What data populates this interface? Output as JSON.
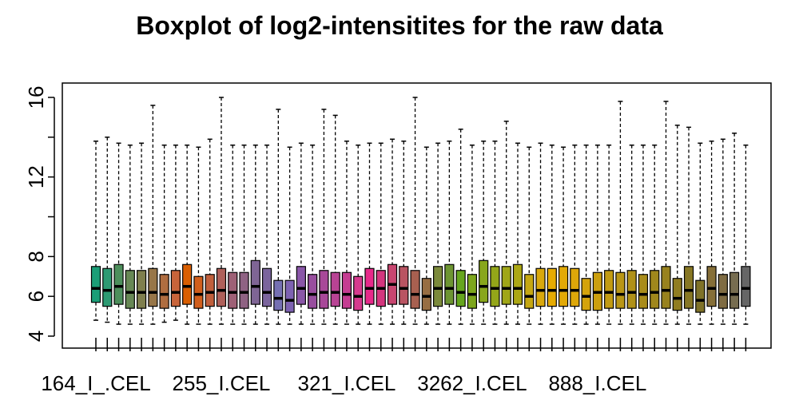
{
  "chart_data": {
    "type": "boxplot",
    "title": "Boxplot of log2-intensitites for the raw data",
    "xlabel": "",
    "ylabel": "",
    "ylim": [
      4,
      16
    ],
    "yticks": [
      4,
      6,
      8,
      12,
      16
    ],
    "xticklabels": [
      {
        "index": 1,
        "label": "164_I_.CEL"
      },
      {
        "index": 12,
        "label": "255_I.CEL"
      },
      {
        "index": 23,
        "label": "321_I.CEL"
      },
      {
        "index": 34,
        "label": "3262_I.CEL"
      },
      {
        "index": 45,
        "label": "888_I.CEL"
      }
    ],
    "boxes": [
      {
        "color": "#1B9E77",
        "whislo": 4.8,
        "q1": 5.7,
        "med": 6.4,
        "q3": 7.5,
        "whishi": 13.8
      },
      {
        "color": "#2E9A73",
        "whislo": 4.7,
        "q1": 5.5,
        "med": 6.3,
        "q3": 7.4,
        "whishi": 14.0
      },
      {
        "color": "#4D8F5C",
        "whislo": 4.6,
        "q1": 5.6,
        "med": 6.5,
        "q3": 7.6,
        "whishi": 13.7
      },
      {
        "color": "#678855",
        "whislo": 4.6,
        "q1": 5.4,
        "med": 6.2,
        "q3": 7.3,
        "whishi": 13.6
      },
      {
        "color": "#7F7F4E",
        "whislo": 4.6,
        "q1": 5.4,
        "med": 6.2,
        "q3": 7.3,
        "whishi": 13.7
      },
      {
        "color": "#977648",
        "whislo": 4.6,
        "q1": 5.5,
        "med": 6.2,
        "q3": 7.4,
        "whishi": 15.6
      },
      {
        "color": "#B06D40",
        "whislo": 4.7,
        "q1": 5.4,
        "med": 6.1,
        "q3": 7.1,
        "whishi": 13.6
      },
      {
        "color": "#C8643A",
        "whislo": 4.8,
        "q1": 5.5,
        "med": 6.2,
        "q3": 7.3,
        "whishi": 13.6
      },
      {
        "color": "#D95F02",
        "whislo": 4.6,
        "q1": 5.6,
        "med": 6.5,
        "q3": 7.6,
        "whishi": 13.6
      },
      {
        "color": "#D15E1C",
        "whislo": 4.6,
        "q1": 5.4,
        "med": 6.1,
        "q3": 7.0,
        "whishi": 13.5
      },
      {
        "color": "#C05F3C",
        "whislo": 4.6,
        "q1": 5.5,
        "med": 6.2,
        "q3": 7.1,
        "whishi": 13.9
      },
      {
        "color": "#AF605A",
        "whislo": 4.6,
        "q1": 5.5,
        "med": 6.3,
        "q3": 7.4,
        "whishi": 16.0
      },
      {
        "color": "#9E6176",
        "whislo": 4.6,
        "q1": 5.4,
        "med": 6.2,
        "q3": 7.2,
        "whishi": 13.6
      },
      {
        "color": "#8F6283",
        "whislo": 4.6,
        "q1": 5.4,
        "med": 6.2,
        "q3": 7.2,
        "whishi": 13.6
      },
      {
        "color": "#7F6595",
        "whislo": 4.6,
        "q1": 5.6,
        "med": 6.5,
        "q3": 7.8,
        "whishi": 13.6
      },
      {
        "color": "#7B659D",
        "whislo": 4.6,
        "q1": 5.5,
        "med": 6.2,
        "q3": 7.4,
        "whishi": 13.6
      },
      {
        "color": "#7570B3",
        "whislo": 4.6,
        "q1": 5.3,
        "med": 5.9,
        "q3": 6.8,
        "whishi": 15.4
      },
      {
        "color": "#7D62B2",
        "whislo": 4.6,
        "q1": 5.2,
        "med": 5.8,
        "q3": 6.8,
        "whishi": 13.5
      },
      {
        "color": "#8A57A8",
        "whislo": 4.6,
        "q1": 5.6,
        "med": 6.4,
        "q3": 7.5,
        "whishi": 13.7
      },
      {
        "color": "#984E9E",
        "whislo": 4.6,
        "q1": 5.4,
        "med": 6.1,
        "q3": 7.1,
        "whishi": 13.6
      },
      {
        "color": "#A84899",
        "whislo": 4.6,
        "q1": 5.4,
        "med": 6.2,
        "q3": 7.3,
        "whishi": 15.4
      },
      {
        "color": "#B84394",
        "whislo": 4.6,
        "q1": 5.5,
        "med": 6.2,
        "q3": 7.2,
        "whishi": 15.1
      },
      {
        "color": "#C53D92",
        "whislo": 4.6,
        "q1": 5.4,
        "med": 6.1,
        "q3": 7.2,
        "whishi": 13.8
      },
      {
        "color": "#D63A8E",
        "whislo": 4.6,
        "q1": 5.3,
        "med": 6.0,
        "q3": 7.0,
        "whishi": 13.6
      },
      {
        "color": "#E7298A",
        "whislo": 4.6,
        "q1": 5.6,
        "med": 6.4,
        "q3": 7.4,
        "whishi": 13.7
      },
      {
        "color": "#D4367E",
        "whislo": 4.6,
        "q1": 5.5,
        "med": 6.4,
        "q3": 7.3,
        "whishi": 13.7
      },
      {
        "color": "#C84670",
        "whislo": 4.6,
        "q1": 5.6,
        "med": 6.6,
        "q3": 7.6,
        "whishi": 13.9
      },
      {
        "color": "#B95462",
        "whislo": 4.6,
        "q1": 5.6,
        "med": 6.4,
        "q3": 7.5,
        "whishi": 13.8
      },
      {
        "color": "#A86050",
        "whislo": 4.6,
        "q1": 5.4,
        "med": 6.1,
        "q3": 7.3,
        "whishi": 16.0
      },
      {
        "color": "#976E43",
        "whislo": 4.6,
        "q1": 5.3,
        "med": 6.0,
        "q3": 6.9,
        "whishi": 13.5
      },
      {
        "color": "#7C8A3B",
        "whislo": 4.6,
        "q1": 5.5,
        "med": 6.4,
        "q3": 7.5,
        "whishi": 13.7
      },
      {
        "color": "#6D9532",
        "whislo": 4.6,
        "q1": 5.6,
        "med": 6.4,
        "q3": 7.6,
        "whishi": 13.8
      },
      {
        "color": "#66A61E",
        "whislo": 4.6,
        "q1": 5.5,
        "med": 6.2,
        "q3": 7.3,
        "whishi": 14.4
      },
      {
        "color": "#7DA61C",
        "whislo": 4.6,
        "q1": 5.4,
        "med": 6.1,
        "q3": 7.1,
        "whishi": 13.6
      },
      {
        "color": "#88A61B",
        "whislo": 4.6,
        "q1": 5.7,
        "med": 6.5,
        "q3": 7.8,
        "whishi": 13.8
      },
      {
        "color": "#94A619",
        "whislo": 4.6,
        "q1": 5.5,
        "med": 6.4,
        "q3": 7.5,
        "whishi": 13.8
      },
      {
        "color": "#A0A617",
        "whislo": 4.6,
        "q1": 5.6,
        "med": 6.4,
        "q3": 7.5,
        "whishi": 14.8
      },
      {
        "color": "#ACA715",
        "whislo": 4.6,
        "q1": 5.6,
        "med": 6.4,
        "q3": 7.6,
        "whishi": 13.7
      },
      {
        "color": "#C5A712",
        "whislo": 4.6,
        "q1": 5.4,
        "med": 6.0,
        "q3": 7.1,
        "whishi": 13.5
      },
      {
        "color": "#D9A80D",
        "whislo": 4.6,
        "q1": 5.5,
        "med": 6.3,
        "q3": 7.4,
        "whishi": 13.7
      },
      {
        "color": "#E6AB02",
        "whislo": 4.6,
        "q1": 5.5,
        "med": 6.3,
        "q3": 7.4,
        "whishi": 13.6
      },
      {
        "color": "#E2A906",
        "whislo": 4.6,
        "q1": 5.5,
        "med": 6.3,
        "q3": 7.5,
        "whishi": 13.5
      },
      {
        "color": "#DDA709",
        "whislo": 4.6,
        "q1": 5.5,
        "med": 6.3,
        "q3": 7.4,
        "whishi": 13.6
      },
      {
        "color": "#D4A30C",
        "whislo": 4.6,
        "q1": 5.3,
        "med": 6.0,
        "q3": 6.9,
        "whishi": 13.6
      },
      {
        "color": "#CB9F0F",
        "whislo": 4.6,
        "q1": 5.3,
        "med": 6.2,
        "q3": 7.2,
        "whishi": 13.6
      },
      {
        "color": "#C29B12",
        "whislo": 4.6,
        "q1": 5.4,
        "med": 6.2,
        "q3": 7.3,
        "whishi": 13.6
      },
      {
        "color": "#B99615",
        "whislo": 4.6,
        "q1": 5.4,
        "med": 6.1,
        "q3": 7.2,
        "whishi": 15.8
      },
      {
        "color": "#B09118",
        "whislo": 4.6,
        "q1": 5.4,
        "med": 6.2,
        "q3": 7.3,
        "whishi": 13.6
      },
      {
        "color": "#A98C1A",
        "whislo": 4.6,
        "q1": 5.4,
        "med": 6.1,
        "q3": 7.1,
        "whishi": 13.6
      },
      {
        "color": "#A0871C",
        "whislo": 4.6,
        "q1": 5.4,
        "med": 6.2,
        "q3": 7.3,
        "whishi": 13.6
      },
      {
        "color": "#98821E",
        "whislo": 4.6,
        "q1": 5.4,
        "med": 6.3,
        "q3": 7.5,
        "whishi": 15.8
      },
      {
        "color": "#907D21",
        "whislo": 4.6,
        "q1": 5.3,
        "med": 5.9,
        "q3": 6.9,
        "whishi": 14.6
      },
      {
        "color": "#877724",
        "whislo": 4.6,
        "q1": 5.4,
        "med": 6.3,
        "q3": 7.5,
        "whishi": 14.5
      },
      {
        "color": "#7F7228",
        "whislo": 4.6,
        "q1": 5.2,
        "med": 5.8,
        "q3": 6.8,
        "whishi": 13.7
      },
      {
        "color": "#866F38",
        "whislo": 4.6,
        "q1": 5.5,
        "med": 6.4,
        "q3": 7.5,
        "whishi": 13.8
      },
      {
        "color": "#7F6C43",
        "whislo": 4.6,
        "q1": 5.4,
        "med": 6.1,
        "q3": 7.1,
        "whishi": 13.9
      },
      {
        "color": "#776D50",
        "whislo": 4.6,
        "q1": 5.4,
        "med": 6.1,
        "q3": 7.2,
        "whishi": 14.2
      },
      {
        "color": "#666666",
        "whislo": 4.6,
        "q1": 5.5,
        "med": 6.4,
        "q3": 7.5,
        "whishi": 13.6
      }
    ]
  }
}
